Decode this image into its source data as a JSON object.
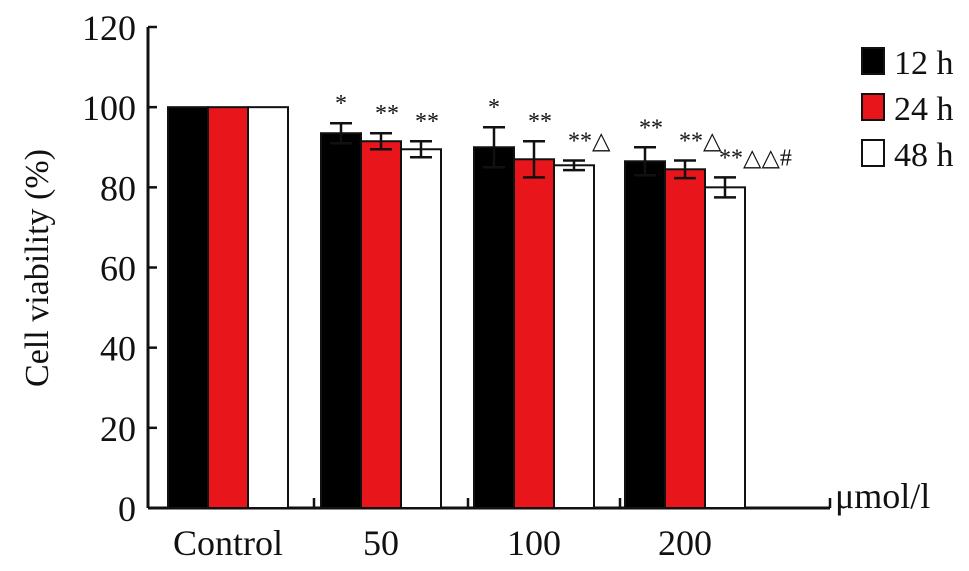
{
  "chart_data": {
    "type": "bar",
    "ylabel": "Cell viability (%)",
    "xunit": "μmol/l",
    "ylim": [
      0,
      120
    ],
    "yticks": [
      0,
      20,
      40,
      60,
      80,
      100,
      120
    ],
    "categories": [
      "Control",
      "50",
      "100",
      "200"
    ],
    "series": [
      {
        "name": "12 h",
        "color": "#000000",
        "values": [
          100,
          93.5,
          90,
          86.5
        ],
        "errors": [
          0,
          2.5,
          5,
          3.5
        ],
        "annotations": [
          "",
          "*",
          "*",
          "**"
        ]
      },
      {
        "name": "24 h",
        "color": "#e8151b",
        "values": [
          100,
          91.5,
          87,
          84.5
        ],
        "errors": [
          0,
          2,
          4.5,
          2.2
        ],
        "annotations": [
          "",
          "**",
          "**",
          "**△"
        ]
      },
      {
        "name": "48 h",
        "color": "#ffffff",
        "values": [
          100,
          89.5,
          85.5,
          80
        ],
        "errors": [
          0,
          2,
          1.2,
          2.5
        ],
        "annotations": [
          "",
          "**",
          "**△",
          "**△△#"
        ]
      }
    ],
    "legend_position": "top-right",
    "grid": false
  }
}
